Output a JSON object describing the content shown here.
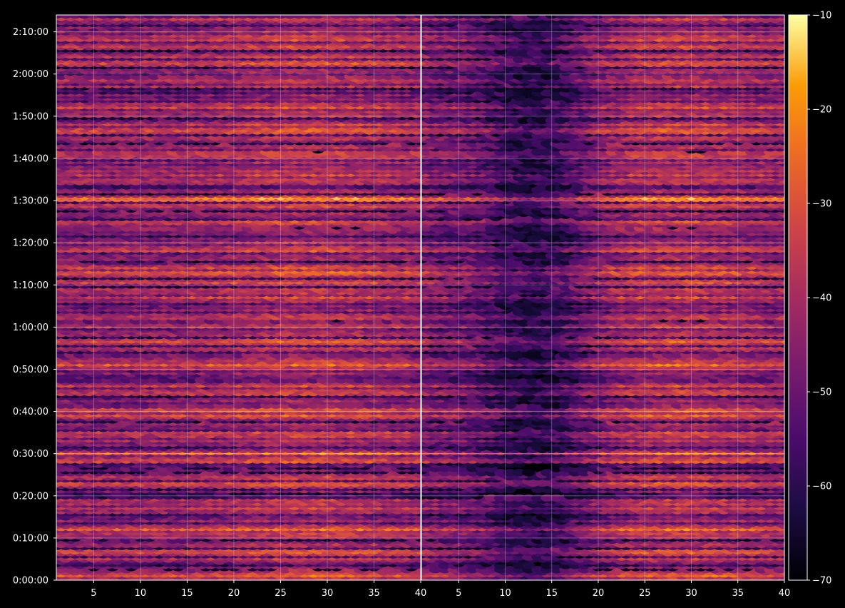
{
  "chart_data": {
    "type": "heatmap",
    "panels": 2,
    "colormap": "inferno",
    "background": "#000000",
    "axis_color": "#ffffff",
    "grid": true,
    "x": {
      "label": "",
      "range": [
        1,
        40
      ],
      "ticks": [
        5,
        10,
        15,
        20,
        25,
        30,
        35,
        40
      ],
      "tick_labels": [
        "5",
        "10",
        "15",
        "20",
        "25",
        "30",
        "35",
        "40"
      ]
    },
    "y": {
      "label": "",
      "range_seconds": [
        0,
        8040
      ],
      "ticks_seconds": [
        0,
        600,
        1200,
        1800,
        2400,
        3000,
        3600,
        4200,
        4800,
        5400,
        6000,
        6600,
        7200,
        7800
      ],
      "tick_labels": [
        "0:00:00",
        "0:10:00",
        "0:20:00",
        "0:30:00",
        "0:40:00",
        "0:50:00",
        "1:00:00",
        "1:10:00",
        "1:20:00",
        "1:30:00",
        "1:40:00",
        "1:50:00",
        "2:00:00",
        "2:10:00"
      ]
    },
    "colorbar": {
      "range": [
        -70,
        -10
      ],
      "ticks": [
        -70,
        -60,
        -50,
        -40,
        -30,
        -20,
        -10
      ],
      "tick_labels": [
        "−70",
        "−60",
        "−50",
        "−40",
        "−30",
        "−20",
        "−10"
      ]
    },
    "bright_rows_seconds": [
      120,
      720,
      1830,
      2400,
      3120,
      3600,
      4260,
      4440,
      5460,
      5880,
      6480,
      7620
    ],
    "dark_gaps_seconds": [
      180,
      1260,
      1620,
      2520,
      2880,
      3240,
      3720,
      5040,
      5640,
      6120,
      7020,
      7200
    ]
  }
}
